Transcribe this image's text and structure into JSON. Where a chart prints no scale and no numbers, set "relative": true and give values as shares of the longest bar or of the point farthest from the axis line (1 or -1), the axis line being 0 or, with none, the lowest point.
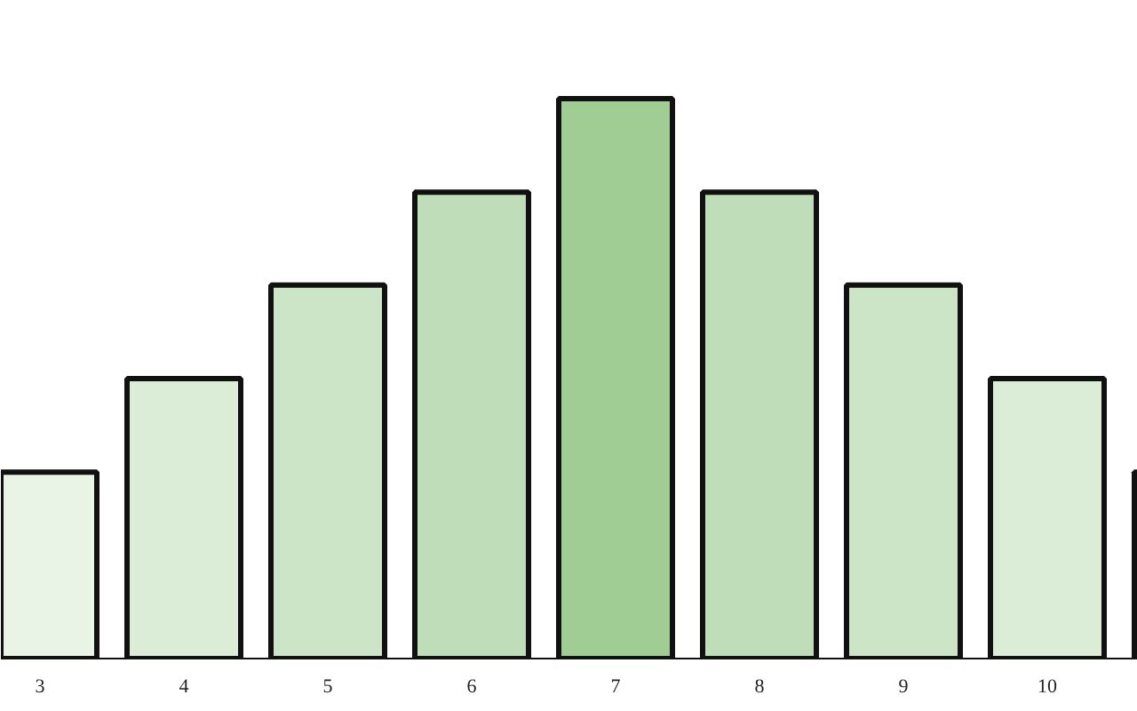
{
  "chart_data": {
    "type": "bar",
    "relative": true,
    "categories": [
      "3",
      "4",
      "5",
      "6",
      "7",
      "8",
      "9",
      "10",
      null
    ],
    "values": [
      0.333,
      0.5,
      0.667,
      0.833,
      1,
      0.833,
      0.667,
      0.5,
      0.333
    ],
    "colors": [
      "#e9f3e6",
      "#dbecd7",
      "#cde5c7",
      "#bfddb8",
      "#a0cd94",
      "#bfddb8",
      "#cde5c7",
      "#dbecd7",
      "#e9f3e6"
    ],
    "grid": false
  }
}
